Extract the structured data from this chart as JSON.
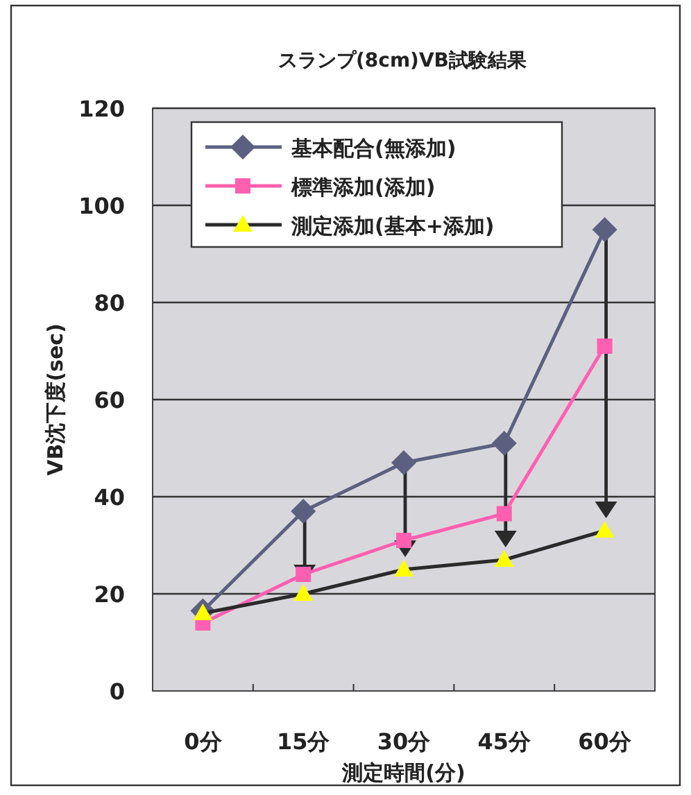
{
  "chart_data": {
    "type": "line",
    "title": "スランプ(8cm)VB試験結果",
    "xlabel": "測定時間(分)",
    "ylabel": "VB沈下度(sec)",
    "categories": [
      "0分",
      "15分",
      "30分",
      "45分",
      "60分"
    ],
    "series": [
      {
        "name": "基本配合(無添加)",
        "color": "#5c6080",
        "marker": "diamond",
        "values": [
          16.5,
          37,
          47,
          51,
          95
        ]
      },
      {
        "name": "標準添加(添加)",
        "color": "#ff5fb0",
        "marker": "square",
        "values": [
          14,
          24,
          31,
          36.5,
          71
        ]
      },
      {
        "name": "測定添加(基本+添加)",
        "color": "#2a2a2a",
        "marker": "triangle",
        "values": [
          16,
          20,
          25,
          27,
          33
        ]
      }
    ],
    "ylim": [
      0,
      120
    ],
    "yticks": [
      0,
      20,
      40,
      60,
      80,
      100,
      120
    ],
    "grid": "y",
    "legend": "top left"
  }
}
